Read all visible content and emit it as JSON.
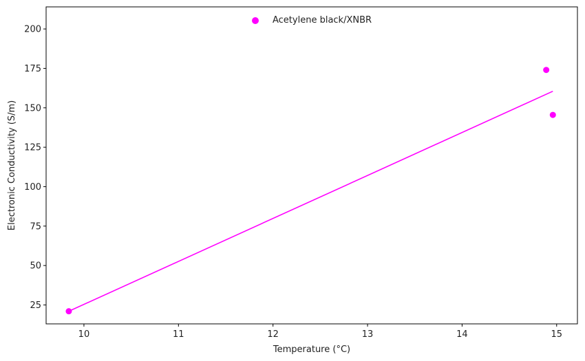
{
  "chart_data": {
    "type": "scatter",
    "title": "",
    "xlabel": "Temperature (°C)",
    "ylabel": "Electronic Conductivity (S/m)",
    "xlim": [
      9.6,
      15.22
    ],
    "ylim": [
      13,
      214
    ],
    "xticks": [
      10,
      11,
      12,
      13,
      14,
      15
    ],
    "yticks": [
      25,
      50,
      75,
      100,
      125,
      150,
      175,
      200
    ],
    "grid": false,
    "legend": "top-center",
    "series": [
      {
        "name": "Acetylene black/XNBR",
        "color": "#ff00ff",
        "marker": "circle",
        "points": [
          {
            "x": 9.84,
            "y": 21
          },
          {
            "x": 14.89,
            "y": 174
          },
          {
            "x": 14.96,
            "y": 145.5
          }
        ],
        "fit_line": {
          "x": [
            9.84,
            14.96
          ],
          "y": [
            21,
            160.5
          ]
        }
      }
    ]
  }
}
